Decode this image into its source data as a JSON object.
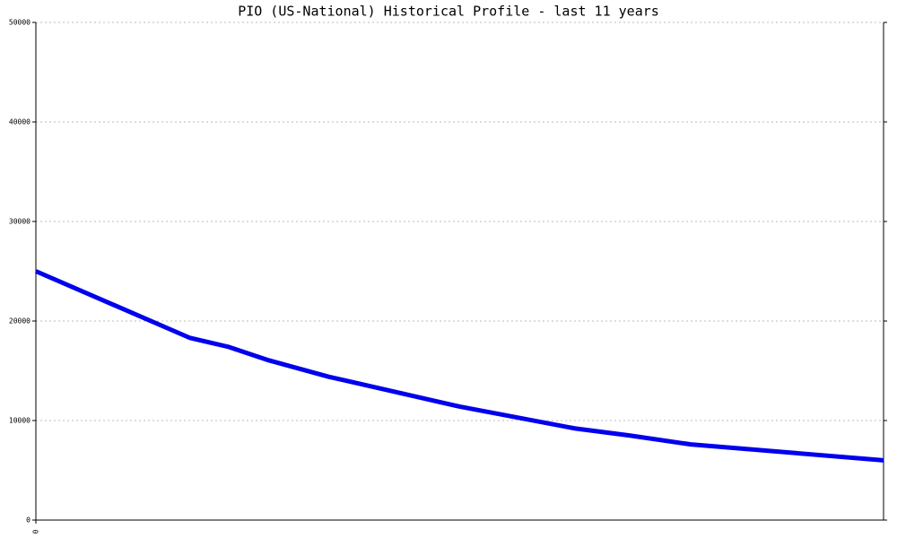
{
  "chart_data": {
    "type": "line",
    "title": "PIO (US-National) Historical Profile - last 11 years",
    "x": [
      0,
      2,
      2.5,
      3,
      3.8,
      5.5,
      7,
      7.7,
      8.5,
      11
    ],
    "series": [
      {
        "color": "#0000ee",
        "values": [
          25000,
          18300,
          17400,
          16100,
          14400,
          11400,
          9200,
          8500,
          7600,
          6000
        ]
      }
    ],
    "xlim": [
      0,
      11
    ],
    "xticks": [
      0
    ],
    "ylim": [
      0,
      50000
    ],
    "yticks": [
      0,
      10000,
      20000,
      30000,
      40000,
      50000
    ],
    "grid": true
  }
}
